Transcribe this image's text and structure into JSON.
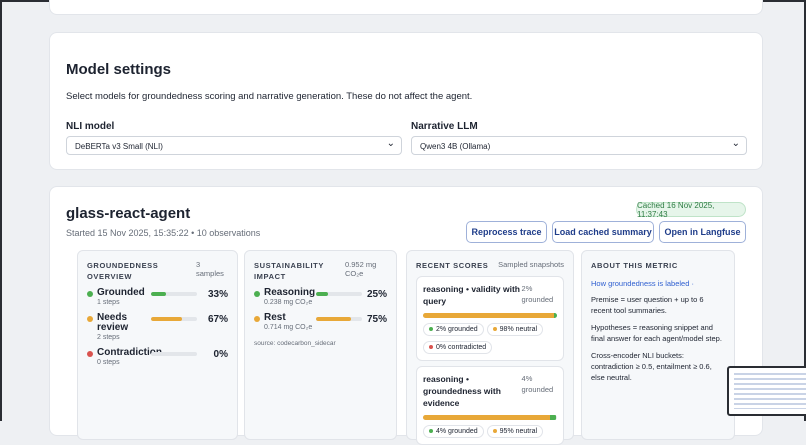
{
  "settings": {
    "title": "Model settings",
    "description": "Select models for groundedness scoring and narrative generation. These do not affect the agent.",
    "nli_label": "NLI model",
    "nli_value": "DeBERTa v3 Small (NLI)",
    "narrative_label": "Narrative LLM",
    "narrative_value": "Qwen3 4B (Ollama)"
  },
  "agent": {
    "name": "glass-react-agent",
    "cached": "Cached 16 Nov 2025, 11:37:43",
    "started": "Started 15 Nov 2025, 15:35:22 • 10 observations",
    "buttons": [
      "Reprocess trace",
      "Load cached summary",
      "Open in Langfuse"
    ]
  },
  "groundedness": {
    "title": "GROUNDEDNESS OVERVIEW",
    "samples": "3 samples",
    "rows": [
      {
        "label": "Grounded",
        "sub": "1 steps",
        "value": 33,
        "value_label": "33%",
        "color": "#4caf50"
      },
      {
        "label": "Needs review",
        "sub": "2 steps",
        "value": 67,
        "value_label": "67%",
        "color": "#e8a838"
      },
      {
        "label": "Contradiction",
        "sub": "0 steps",
        "value": 0,
        "value_label": "0%",
        "color": "#d9534f"
      }
    ]
  },
  "sustainability": {
    "title": "SUSTAINABILITY IMPACT",
    "total": "0.952 mg CO₂e",
    "rows": [
      {
        "label": "Reasoning",
        "sub": "0.238 mg CO₂e",
        "value": 25,
        "value_label": "25%",
        "color": "#4caf50"
      },
      {
        "label": "Rest",
        "sub": "0.714 mg CO₂e",
        "value": 75,
        "value_label": "75%",
        "color": "#e8a838"
      }
    ],
    "source": "source: codecarbon_sidecar"
  },
  "recent_scores": {
    "title": "RECENT SCORES",
    "note": "Sampled snapshots",
    "items": [
      {
        "title": "reasoning • validity with query",
        "score": "2% grounded",
        "segments": [
          {
            "value": 98,
            "color": "#e8a838"
          },
          {
            "value": 2,
            "color": "#4caf50"
          },
          {
            "value": 0,
            "color": "#d9534f"
          }
        ],
        "chips": [
          {
            "text": "2% grounded",
            "color": "#4caf50"
          },
          {
            "text": "98% neutral",
            "color": "#e8a838"
          },
          {
            "text": "0% contradicted",
            "color": "#d9534f"
          }
        ]
      },
      {
        "title": "reasoning • groundedness with evidence",
        "score": "4% grounded",
        "segments": [
          {
            "value": 95,
            "color": "#e8a838"
          },
          {
            "value": 4,
            "color": "#4caf50"
          }
        ],
        "chips": [
          {
            "text": "4% grounded",
            "color": "#4caf50"
          },
          {
            "text": "95% neutral",
            "color": "#e8a838"
          }
        ]
      }
    ]
  },
  "about": {
    "title": "ABOUT THIS METRIC",
    "link": "How groundedness is labeled",
    "paragraphs": [
      "Premise = user question + up to 6 recent tool summaries.",
      "Hypotheses = reasoning snippet and final answer for each agent/model step.",
      "Cross-encoder NLI buckets: contradiction ≥ 0.5, entailment ≥ 0.6, else neutral."
    ]
  }
}
